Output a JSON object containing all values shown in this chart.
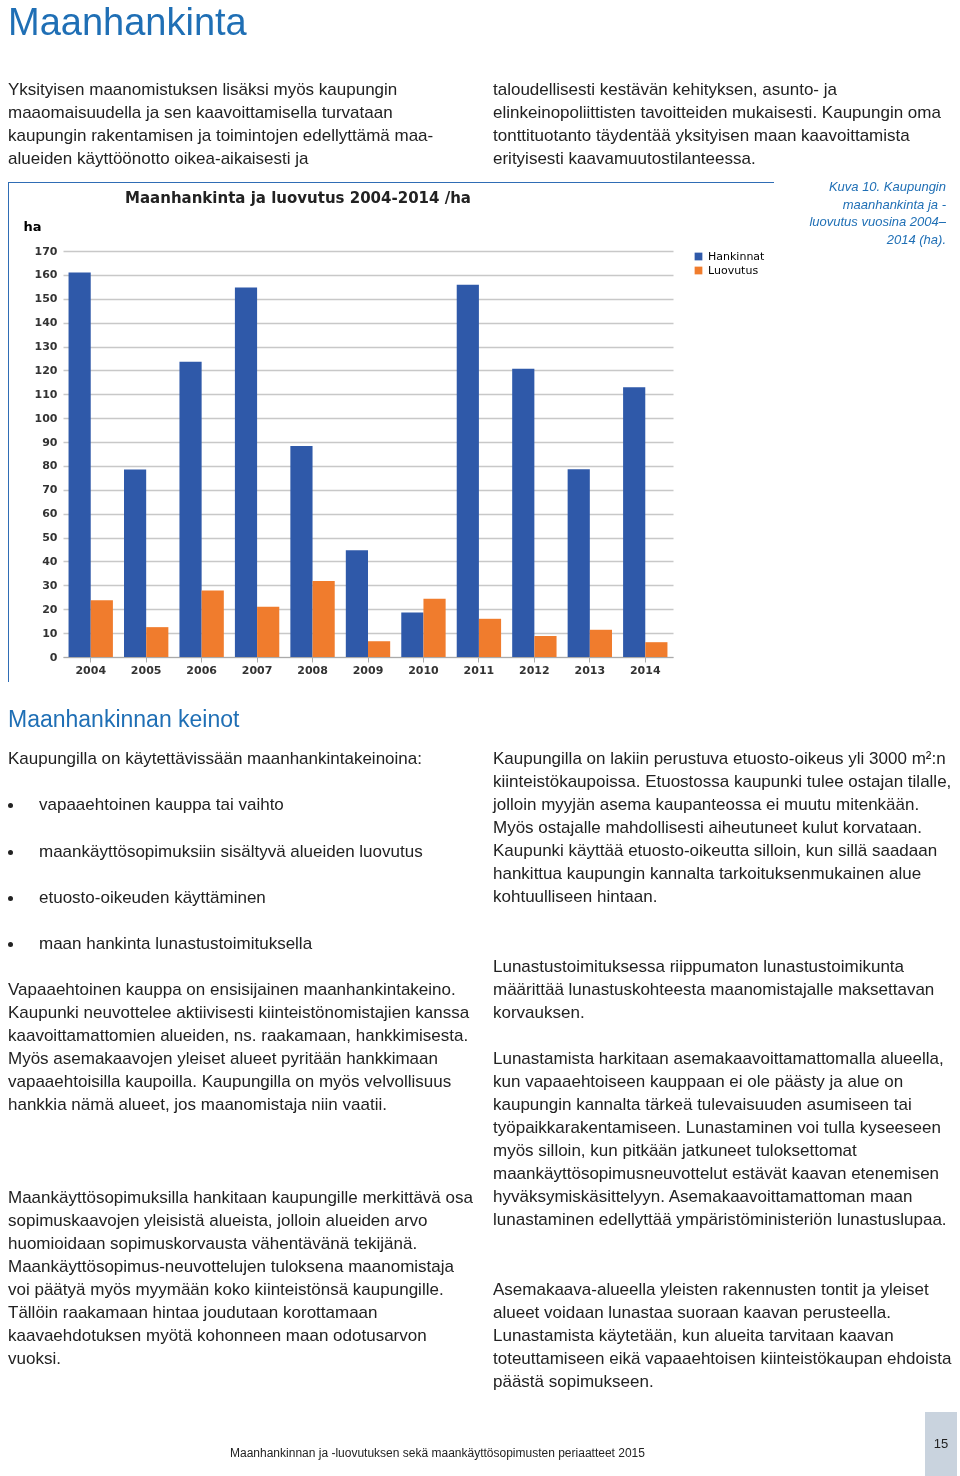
{
  "chart_data": {
    "type": "bar",
    "title": "Maanhankinta ja luovutus 2004-2014 /ha",
    "ylabel": "ha",
    "categories": [
      "2004",
      "2005",
      "2006",
      "2007",
      "2008",
      "2009",
      "2010",
      "2011",
      "2012",
      "2013",
      "2014"
    ],
    "series": [
      {
        "name": "Hankinnat",
        "color": "#2f59a9",
        "values": [
          161,
          78.5,
          123.6,
          154.7,
          88.3,
          44.7,
          18.6,
          155.9,
          120.7,
          78.6,
          112.9
        ]
      },
      {
        "name": "Luovutus",
        "color": "#f07c2d",
        "values": [
          23.8,
          12.5,
          27.8,
          21,
          31.8,
          6.6,
          24.4,
          16,
          8.8,
          11.4,
          6.2
        ]
      }
    ],
    "ylim": [
      0,
      170
    ],
    "yticks": [
      0,
      10,
      20,
      30,
      40,
      50,
      60,
      70,
      80,
      90,
      100,
      110,
      120,
      130,
      140,
      150,
      160,
      170
    ],
    "grid": "y",
    "legend": "right",
    "annotations": [
      "Maanhankinta",
      "Yksityisen maanomistuksen lisäksi myös kaupungin maaomaisuudella ja sen kaavoittamisella turvataan kaupungin rakentamisen ja toimintojen edellyttämä maa-alueiden käyttöönotto oikea-aikaisesti ja",
      "taloudellisesti kestävän kehityksen, asunto- ja elinkeinopoliittisten tavoitteiden mukaisesti. Kaupungin oma tonttituotanto täydentää yksityisen maan kaavoittamista erityisesti kaavamuutostilanteessa.",
      "Kuva 10. Kaupungin maanhankinta ja -luovutus vuosina 2004–2014 (ha).",
      "Maanhankinnan keinot",
      "Kaupungilla on käytettävissään maanhankintakeinoina:",
      "vapaaehtoinen kauppa tai vaihto",
      "maankäyttösopimuksiin sisältyvä alueiden luovutus",
      "etuosto-oikeuden käyttäminen",
      "maan hankinta lunastustoimituksella",
      "Vapaaehtoinen kauppa on ensisijainen maanhankintakeino. Kaupunki neuvottelee aktiivisesti kiinteistönomistajien kanssa kaavoittamattomien alueiden, ns. raakamaan, hankkimisesta. Myös asemakaavojen yleiset alueet pyritään hankkimaan vapaaehtoisilla kaupoilla. Kaupungilla on myös velvollisuus hankkia nämä alueet, jos maanomistaja niin vaatii.",
      "Maankäyttösopimuksilla hankitaan kaupungille merkittävä osa sopimuskaavojen yleisistä alueista, jolloin alueiden arvo huomioidaan sopimuskorvausta vähentävänä tekijänä. Maankäyttösopimus-neuvottelujen tuloksena maanomistaja voi päätyä myös myymään koko kiinteistönsä kaupungille. Tällöin raakamaan hintaa joudutaan korottamaan kaavaehdotuksen myötä kohonneen maan odotusarvon vuoksi.",
      "Kaupungilla on lakiin perustuva etuosto-oikeus yli 3000 m²:n kiinteistökaupoissa. Etuostossa kaupunki tulee ostajan tilalle, jolloin myyjän asema kaupanteossa ei muutu mitenkään. Myös ostajalle mahdollisesti aiheutuneet kulut korvataan. Kaupunki käyttää etuosto-oikeutta silloin, kun sillä saadaan hankittua kaupungin kannalta tarkoituksenmukainen alue kohtuulliseen hintaan.",
      "Lunastustoimituksessa riippumaton lunastustoimikunta määrittää lunastuskohteesta maanomistajalle maksettavan korvauksen.",
      "Lunastamista harkitaan asemakaavoittamattomalla alueella, kun vapaaehtoiseen kauppaan ei ole päästy ja alue on kaupungin kannalta tärkeä tulevaisuuden asumiseen tai työpaikkarakentamiseen. Lunastaminen voi tulla kyseeseen myös silloin, kun pitkään jatkuneet tuloksettomat maankäyttösopimusneuvottelut estävät kaavan etenemisen hyväksymiskäsittelyyn. Asemakaavoittamattoman maan lunastaminen edellyttää ympäristöministeriön lunastuslupaa.",
      "Asemakaava-alueella yleisten rakennusten tontit ja yleiset alueet voidaan lunastaa suoraan kaavan perusteella. Lunastamista käytetään, kun alueita tarvitaan kaavan toteuttamiseen eikä vapaaehtoisen kiinteistökaupan ehdoista päästä sopimukseen.",
      "Maanhankinnan ja -luovutuksen sekä maankäyttösopimusten periaatteet 2015",
      "15"
    ]
  }
}
